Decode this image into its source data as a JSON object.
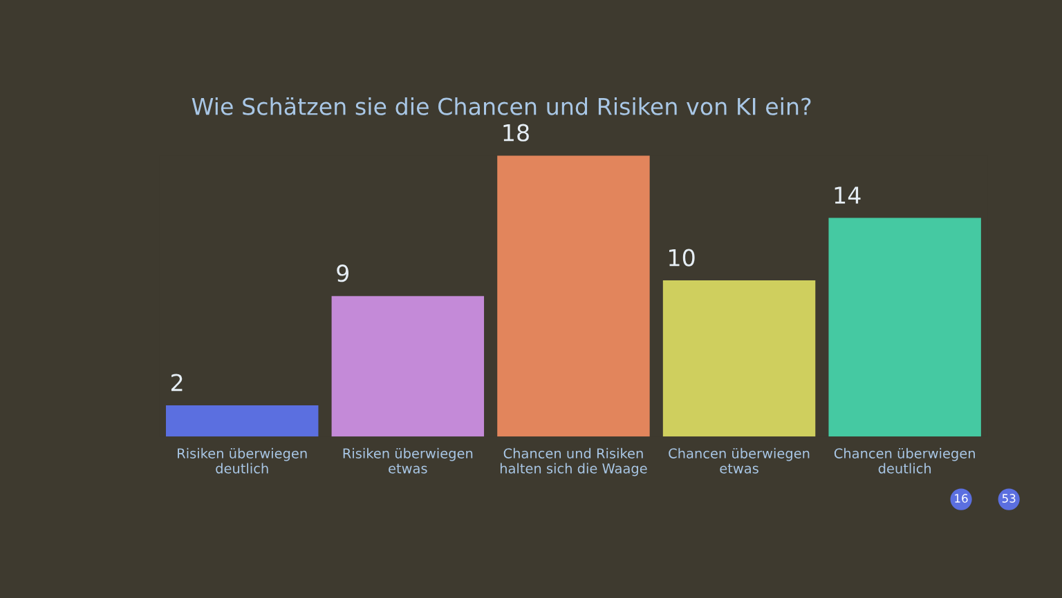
{
  "chart_data": {
    "type": "bar",
    "title": "Wie Schätzen sie die Chancen und Risiken von KI ein?",
    "categories": [
      "Risiken überwiegen deutlich",
      "Risiken überwiegen etwas",
      "Chancen und Risiken halten sich die Waage",
      "Chancen überwiegen etwas",
      "Chancen überwiegen deutlich"
    ],
    "values": [
      2,
      9,
      18,
      10,
      14
    ],
    "colors": [
      "#5b6fe0",
      "#c48ad8",
      "#e2855c",
      "#cfcf5e",
      "#45c9a2"
    ],
    "data_labels": true,
    "annotations": [
      "16",
      "53"
    ]
  }
}
